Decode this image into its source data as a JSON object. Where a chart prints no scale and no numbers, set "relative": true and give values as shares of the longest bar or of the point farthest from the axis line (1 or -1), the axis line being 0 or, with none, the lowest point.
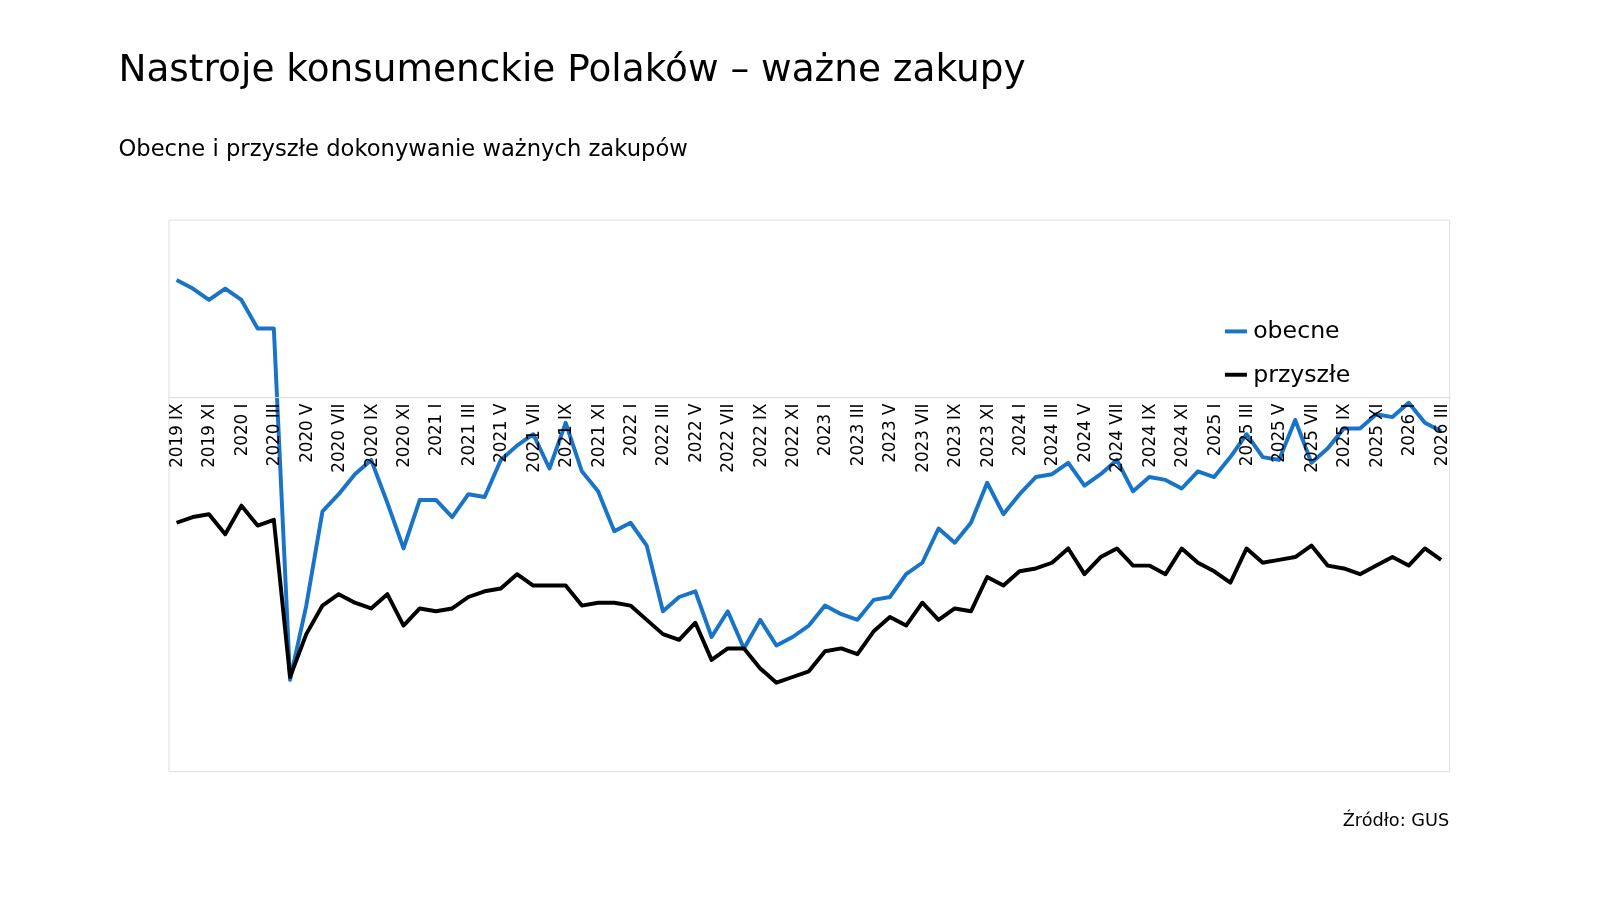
{
  "chart_data": {
    "type": "line",
    "title": "Nastroje konsumenckie Polaków – ważne zakupy",
    "subtitle": "Obecne i przyszłe dokonywanie ważnych zakupów",
    "categories": [
      "2019 IX",
      null,
      "2019 XI",
      null,
      "2020 I",
      null,
      "2020 III",
      null,
      "2020 V",
      null,
      "2020 VII",
      null,
      "2020 IX",
      null,
      "2020 XI",
      null,
      "2021 I",
      null,
      "2021 III",
      null,
      "2021 V",
      null,
      "2021 VII",
      null,
      "2021 IX",
      null,
      "2021 XI",
      null,
      "2022 I",
      null,
      "2022 III",
      null,
      "2022 V",
      null,
      "2022 VII",
      null,
      "2022 IX",
      null,
      "2022 XI",
      null,
      "2023 I",
      null,
      "2023 III",
      null,
      "2023 V",
      null,
      "2023 VII",
      null,
      "2023 IX",
      null,
      "2023 XI",
      null,
      "2024 I",
      null,
      "2024 III",
      null,
      "2024 V",
      null,
      "2024 VII",
      null,
      "2024 IX",
      null,
      "2024 XI",
      null,
      "2025 I",
      null,
      "2025 III",
      null,
      "2025 V",
      null,
      "2025 VII",
      null,
      "2025 IX",
      null,
      "2025 XI",
      null,
      "2026 I",
      null,
      "2026 III"
    ],
    "relative": true,
    "series": [
      {
        "name": "obecne",
        "color": "#1874c8",
        "values": [
          0.41,
          0.38,
          0.34,
          0.38,
          0.34,
          0.24,
          0.24,
          -0.99,
          -0.73,
          -0.4,
          -0.34,
          -0.27,
          -0.22,
          -0.37,
          -0.53,
          -0.36,
          -0.36,
          -0.42,
          -0.34,
          -0.35,
          -0.22,
          -0.17,
          -0.13,
          -0.25,
          -0.09,
          -0.26,
          -0.33,
          -0.47,
          -0.44,
          -0.52,
          -0.75,
          -0.7,
          -0.68,
          -0.84,
          -0.75,
          -0.88,
          -0.78,
          -0.87,
          -0.84,
          -0.8,
          -0.73,
          -0.76,
          -0.78,
          -0.71,
          -0.7,
          -0.62,
          -0.58,
          -0.46,
          -0.51,
          -0.44,
          -0.3,
          -0.41,
          -0.34,
          -0.28,
          -0.27,
          -0.23,
          -0.31,
          -0.27,
          -0.22,
          -0.33,
          -0.28,
          -0.29,
          -0.32,
          -0.26,
          -0.28,
          -0.21,
          -0.13,
          -0.21,
          -0.22,
          -0.08,
          -0.23,
          -0.18,
          -0.11,
          -0.11,
          -0.06,
          -0.07,
          -0.02,
          -0.09,
          -0.12
        ]
      },
      {
        "name": "przyszłe",
        "color": "#000000",
        "values": [
          -0.44,
          -0.42,
          -0.41,
          -0.48,
          -0.38,
          -0.45,
          -0.43,
          -0.98,
          -0.83,
          -0.73,
          -0.69,
          -0.72,
          -0.74,
          -0.69,
          -0.8,
          -0.74,
          -0.75,
          -0.74,
          -0.7,
          -0.68,
          -0.67,
          -0.62,
          -0.66,
          -0.66,
          -0.66,
          -0.73,
          -0.72,
          -0.72,
          -0.73,
          -0.78,
          -0.83,
          -0.85,
          -0.79,
          -0.92,
          -0.88,
          -0.88,
          -0.95,
          -1,
          -0.98,
          -0.96,
          -0.89,
          -0.88,
          -0.9,
          -0.82,
          -0.77,
          -0.8,
          -0.72,
          -0.78,
          -0.74,
          -0.75,
          -0.63,
          -0.66,
          -0.61,
          -0.6,
          -0.58,
          -0.53,
          -0.62,
          -0.56,
          -0.53,
          -0.59,
          -0.59,
          -0.62,
          -0.53,
          -0.58,
          -0.61,
          -0.65,
          -0.53,
          -0.58,
          -0.57,
          -0.56,
          -0.52,
          -0.59,
          -0.6,
          -0.62,
          -0.59,
          -0.56,
          -0.59,
          -0.53,
          -0.57
        ]
      }
    ],
    "legend": "top right",
    "grid": false,
    "marker": "none",
    "line_style": "solid",
    "annotations": [
      "Źródło: GUS"
    ]
  }
}
